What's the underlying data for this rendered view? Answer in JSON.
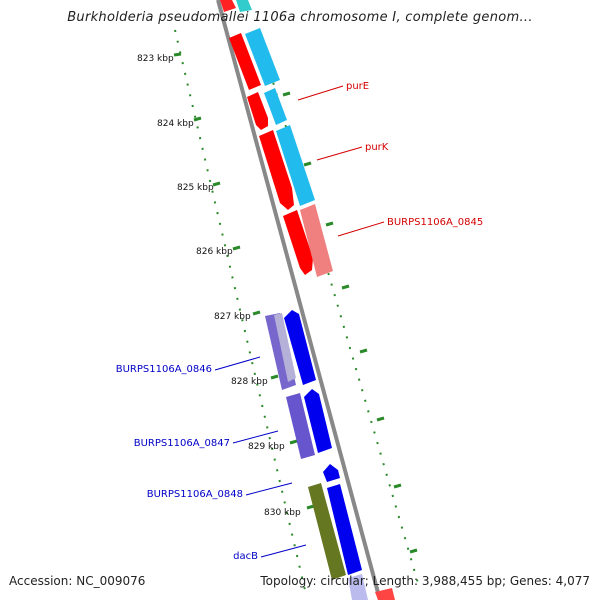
{
  "header": {
    "title": "Burkholderia pseudomallei 1106a chromosome I, complete genom..."
  },
  "footer": {
    "accession": "Accession: NC_009076",
    "stats": "Topology: circular; Length: 3,988,455 bp; Genes: 4,077"
  },
  "scale_ticks": [
    "823 kbp",
    "824 kbp",
    "825 kbp",
    "826 kbp",
    "827 kbp",
    "828 kbp",
    "829 kbp",
    "830 kbp"
  ],
  "gene_labels": [
    {
      "name": "purE",
      "color": "#d40000"
    },
    {
      "name": "purK",
      "color": "#d40000"
    },
    {
      "name": "BURPS1106A_0845",
      "color": "#d40000"
    },
    {
      "name": "BURPS1106A_0846",
      "color": "#0000c8"
    },
    {
      "name": "BURPS1106A_0847",
      "color": "#0000c8"
    },
    {
      "name": "BURPS1106A_0848",
      "color": "#0000c8"
    },
    {
      "name": "dacB",
      "color": "#0000c8"
    }
  ],
  "colors": {
    "forward_strand_gene": "#ff0000",
    "forward_strand_light": "#f08080",
    "cog_cyan": "#22bbee",
    "reverse_strand_gene": "#0000ee",
    "cog_purple": "#6655cc",
    "cog_green": "#667722",
    "backbone": "#888888",
    "gc_ticks": "#228822"
  }
}
